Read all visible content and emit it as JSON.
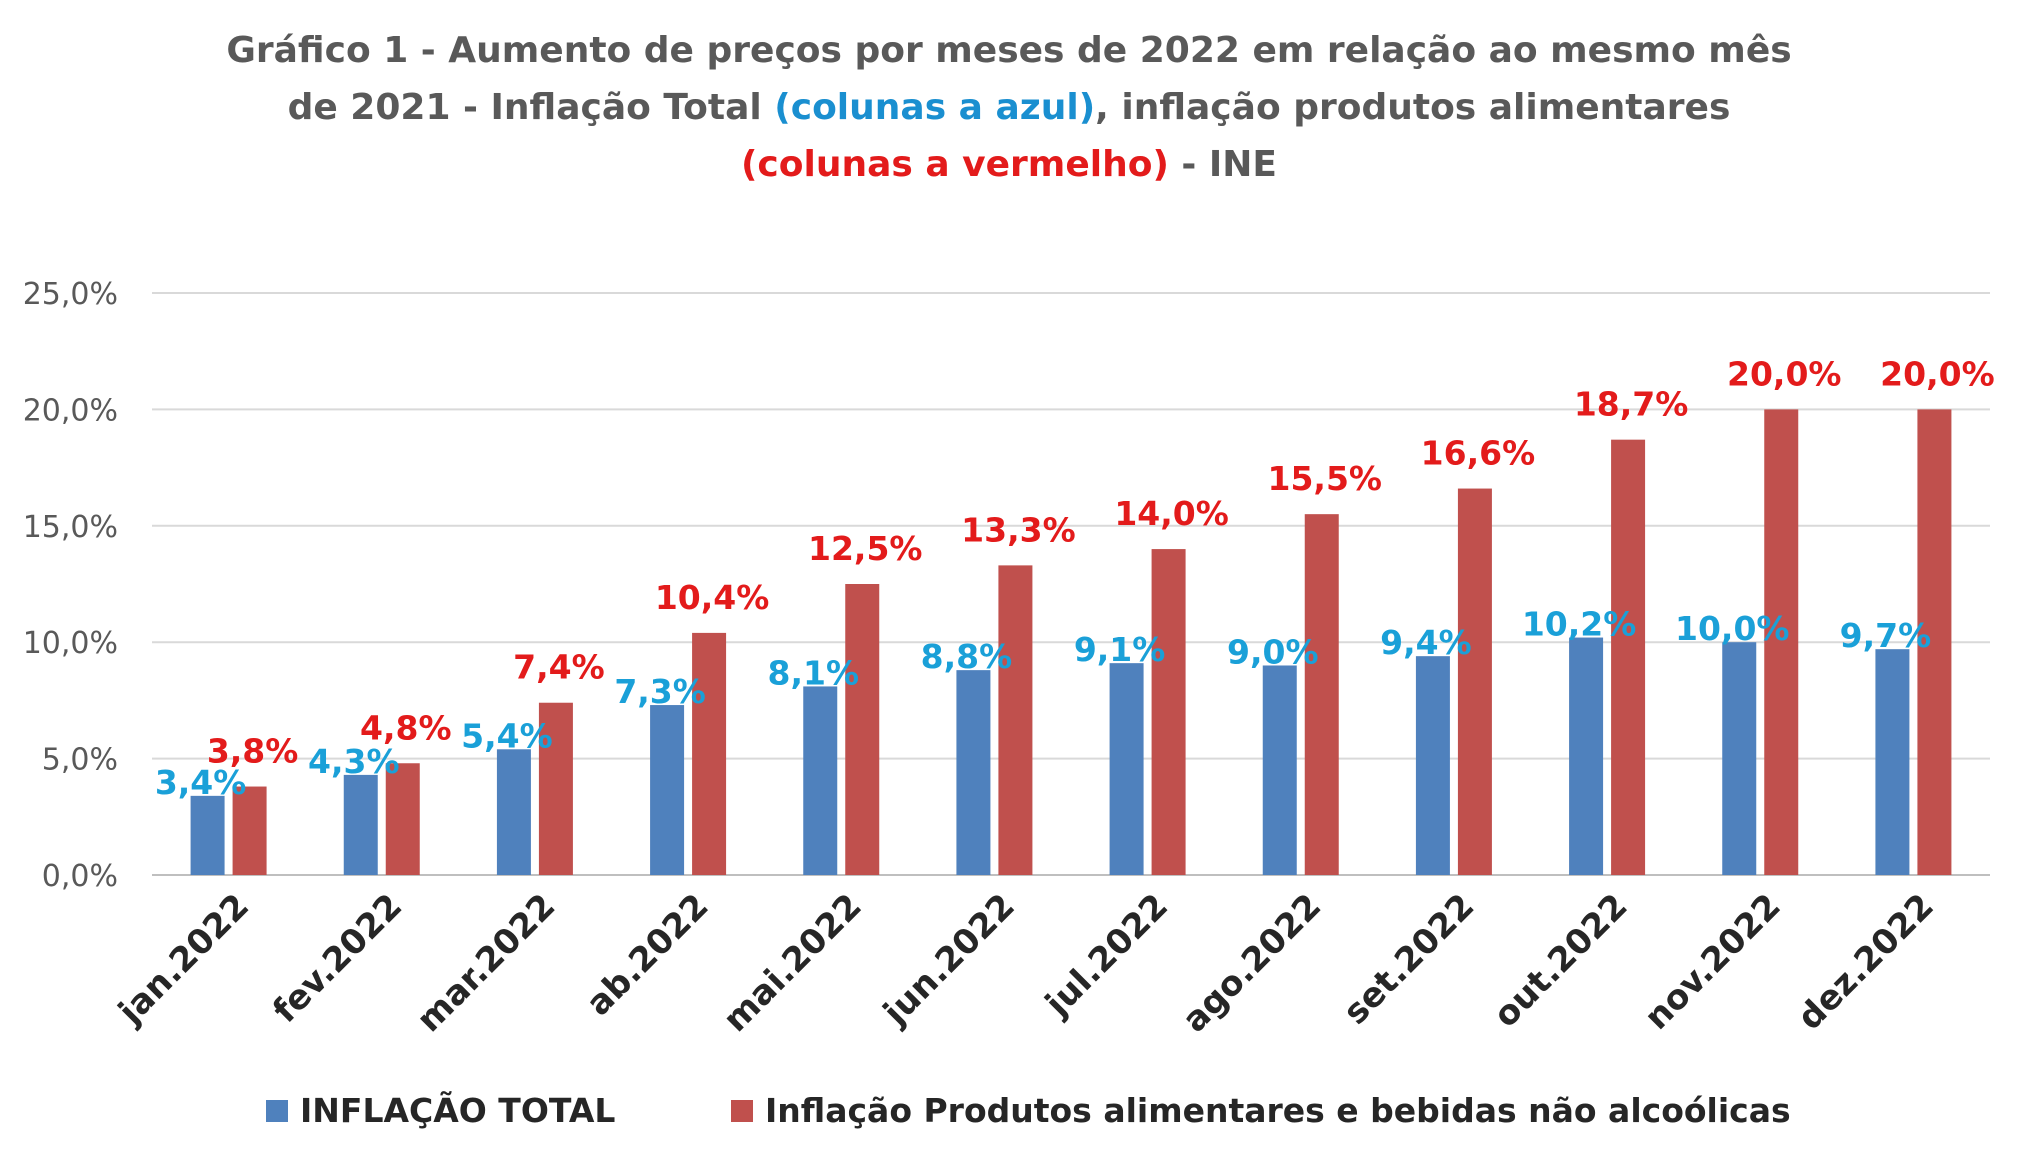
{
  "title": {
    "line1": "Gráfico 1 - Aumento de preços por meses  de  2022 em relação ao mesmo mês",
    "line2_pre": "de 2021 - Inflação Total ",
    "line2_blue": "(colunas a azul)",
    "line2_post": ", inflação produtos alimentares",
    "line3_red": "(colunas a vermelho)",
    "line3_post": " - INE"
  },
  "colors": {
    "series1": "#4f81bd",
    "series2": "#c0504d",
    "label1": "#1aa0d8",
    "label2": "#e31b1b",
    "grid": "#d9d9d9",
    "axis_text": "#595959"
  },
  "chart_data": {
    "type": "bar",
    "categories": [
      "jan.2022",
      "fev.2022",
      "mar.2022",
      "ab.2022",
      "mai.2022",
      "jun.2022",
      "jul.2022",
      "ago.2022",
      "set.2022",
      "out.2022",
      "nov.2022",
      "dez.2022"
    ],
    "series": [
      {
        "name": "INFLAÇÃO TOTAL",
        "values": [
          3.4,
          4.3,
          5.4,
          7.3,
          8.1,
          8.8,
          9.1,
          9.0,
          9.4,
          10.2,
          10.0,
          9.7
        ],
        "labels": [
          "3,4%",
          "4,3%",
          "5,4%",
          "7,3%",
          "8,1%",
          "8,8%",
          "9,1%",
          "9,0%",
          "9,4%",
          "10,2%",
          "10,0%",
          "9,7%"
        ]
      },
      {
        "name": "Inflação Produtos alimentares e bebidas não alcoólicas",
        "values": [
          3.8,
          4.8,
          7.4,
          10.4,
          12.5,
          13.3,
          14.0,
          15.5,
          16.6,
          18.7,
          20.0,
          20.0
        ],
        "labels": [
          "3,8%",
          "4,8%",
          "7,4%",
          "10,4%",
          "12,5%",
          "13,3%",
          "14,0%",
          "15,5%",
          "16,6%",
          "18,7%",
          "20,0%",
          "20,0%"
        ]
      }
    ],
    "ylim": [
      0,
      25
    ],
    "yticks": [
      "0,0%",
      "5,0%",
      "10,0%",
      "15,0%",
      "20,0%",
      "25,0%"
    ],
    "grid": true,
    "legend_position": "bottom"
  }
}
